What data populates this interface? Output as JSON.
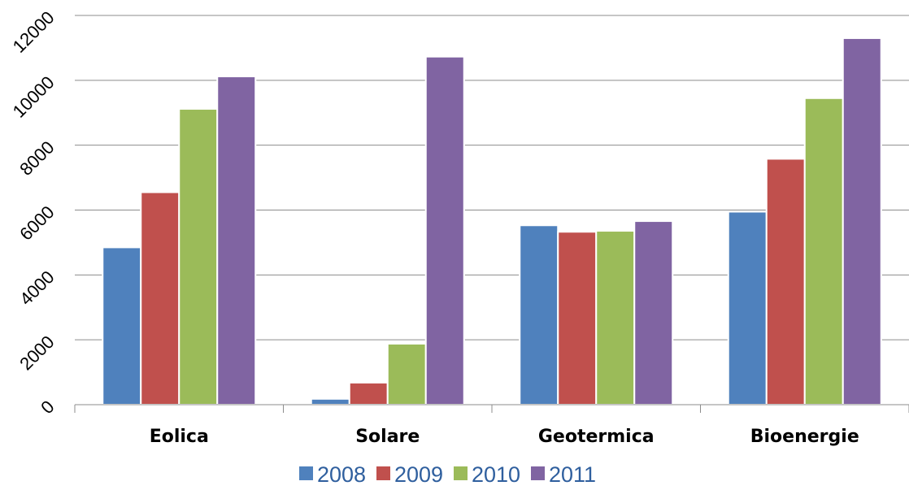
{
  "chart_data": {
    "type": "bar",
    "categories": [
      "Eolica",
      "Solare",
      "Geotermica",
      "Bioenergie"
    ],
    "series": [
      {
        "name": "2008",
        "color": "#4f81bd",
        "values": [
          4850,
          180,
          5530,
          5950
        ]
      },
      {
        "name": "2009",
        "color": "#c0504d",
        "values": [
          6550,
          680,
          5330,
          7580
        ]
      },
      {
        "name": "2010",
        "color": "#9bbb59",
        "values": [
          9120,
          1880,
          5360,
          9450
        ]
      },
      {
        "name": "2011",
        "color": "#8064a2",
        "values": [
          10120,
          10730,
          5660,
          11300
        ]
      }
    ],
    "ylim": [
      0,
      12000
    ],
    "yticks": [
      0,
      2000,
      4000,
      6000,
      8000,
      10000,
      12000
    ],
    "ytick_labels": [
      "0",
      "2000",
      "4000",
      "6000",
      "8000",
      "10000",
      "12000"
    ],
    "grid": true,
    "legend": "bottom",
    "title": "",
    "xlabel": "",
    "ylabel": ""
  }
}
